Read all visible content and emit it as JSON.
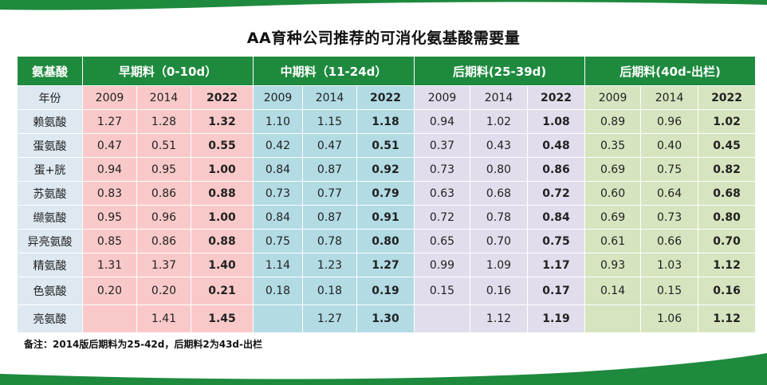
{
  "title": "AA育种公司推荐的可消化氨基酸需要量",
  "header": {
    "first_col": "氨基酸",
    "groups": [
      "早期料（0-10d）",
      "中期料（11-24d）",
      "后期料(25-39d)",
      "后期料(40d-出栏)"
    ]
  },
  "year_label": "年份",
  "years": [
    "2009",
    "2014",
    "2022"
  ],
  "rows": [
    {
      "name": "赖氨酸",
      "values": [
        [
          "1.27",
          "1.28",
          "1.32"
        ],
        [
          "1.10",
          "1.15",
          "1.18"
        ],
        [
          "0.94",
          "1.02",
          "1.08"
        ],
        [
          "0.89",
          "0.96",
          "1.02"
        ]
      ]
    },
    {
      "name": "蛋氨酸",
      "values": [
        [
          "0.47",
          "0.51",
          "0.55"
        ],
        [
          "0.42",
          "0.47",
          "0.51"
        ],
        [
          "0.37",
          "0.43",
          "0.48"
        ],
        [
          "0.35",
          "0.40",
          "0.45"
        ]
      ]
    },
    {
      "name": "蛋+胱",
      "values": [
        [
          "0.94",
          "0.95",
          "1.00"
        ],
        [
          "0.84",
          "0.87",
          "0.92"
        ],
        [
          "0.73",
          "0.80",
          "0.86"
        ],
        [
          "0.69",
          "0.75",
          "0.82"
        ]
      ]
    },
    {
      "name": "苏氨酸",
      "values": [
        [
          "0.83",
          "0.86",
          "0.88"
        ],
        [
          "0.73",
          "0.77",
          "0.79"
        ],
        [
          "0.63",
          "0.68",
          "0.72"
        ],
        [
          "0.60",
          "0.64",
          "0.68"
        ]
      ]
    },
    {
      "name": "缬氨酸",
      "values": [
        [
          "0.95",
          "0.96",
          "1.00"
        ],
        [
          "0.84",
          "0.87",
          "0.91"
        ],
        [
          "0.72",
          "0.78",
          "0.84"
        ],
        [
          "0.69",
          "0.73",
          "0.80"
        ]
      ]
    },
    {
      "name": "异亮氨酸",
      "values": [
        [
          "0.85",
          "0.86",
          "0.88"
        ],
        [
          "0.75",
          "0.78",
          "0.80"
        ],
        [
          "0.65",
          "0.70",
          "0.75"
        ],
        [
          "0.61",
          "0.66",
          "0.70"
        ]
      ]
    },
    {
      "name": "精氨酸",
      "values": [
        [
          "1.31",
          "1.37",
          "1.40"
        ],
        [
          "1.14",
          "1.23",
          "1.27"
        ],
        [
          "0.99",
          "1.09",
          "1.17"
        ],
        [
          "0.93",
          "1.03",
          "1.12"
        ]
      ]
    },
    {
      "name": "色氨酸",
      "values": [
        [
          "0.20",
          "0.20",
          "0.21"
        ],
        [
          "0.18",
          "0.18",
          "0.19"
        ],
        [
          "0.15",
          "0.16",
          "0.17"
        ],
        [
          "0.14",
          "0.15",
          "0.16"
        ]
      ]
    },
    {
      "name": "亮氨酸",
      "values": [
        [
          "",
          "1.41",
          "1.45"
        ],
        [
          "",
          "1.27",
          "1.30"
        ],
        [
          "",
          "1.12",
          "1.19"
        ],
        [
          "",
          "1.06",
          "1.12"
        ]
      ]
    }
  ],
  "note": "备注：2014版后期料为25-42d，后期料2为43d-出栏",
  "colors": {
    "header_green": "#1e8a3e",
    "name_col": "#dde8f0",
    "group_backgrounds": [
      "#f9c9c9",
      "#b2dbe4",
      "#e2ddec",
      "#d6e4bf"
    ]
  }
}
